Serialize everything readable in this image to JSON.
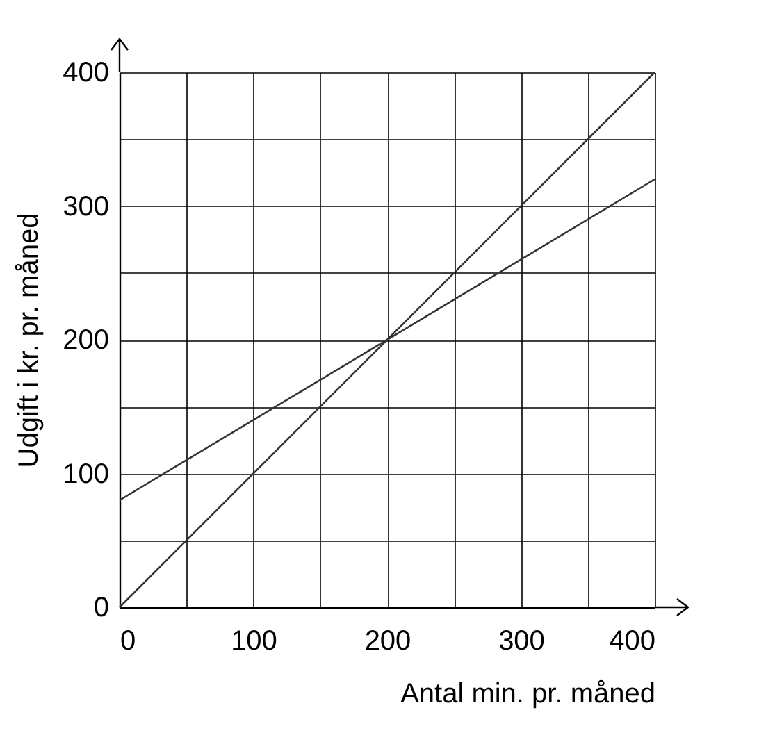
{
  "chart_data": {
    "type": "line",
    "xlabel": "Antal min. pr. måned",
    "ylabel": "Udgift i kr. pr. måned",
    "xlim": [
      0,
      400
    ],
    "ylim": [
      0,
      400
    ],
    "xticks": [
      0,
      {
        "value": 50,
        "label": null
      },
      100,
      {
        "value": 150,
        "label": null
      },
      200,
      {
        "value": 250,
        "label": null
      },
      300,
      {
        "value": 350,
        "label": null
      },
      400
    ],
    "yticks": [
      0,
      {
        "value": 50,
        "label": null
      },
      100,
      {
        "value": 150,
        "label": null
      },
      200,
      {
        "value": 250,
        "label": null
      },
      300,
      {
        "value": 350,
        "label": null
      },
      400
    ],
    "x": [
      0,
      400
    ],
    "grid": true,
    "marker": "none",
    "line_style": "solid",
    "series": [
      {
        "color": "#333333",
        "values": [
          0,
          400
        ]
      },
      {
        "color": "#333333",
        "values": [
          80,
          320
        ]
      }
    ]
  }
}
